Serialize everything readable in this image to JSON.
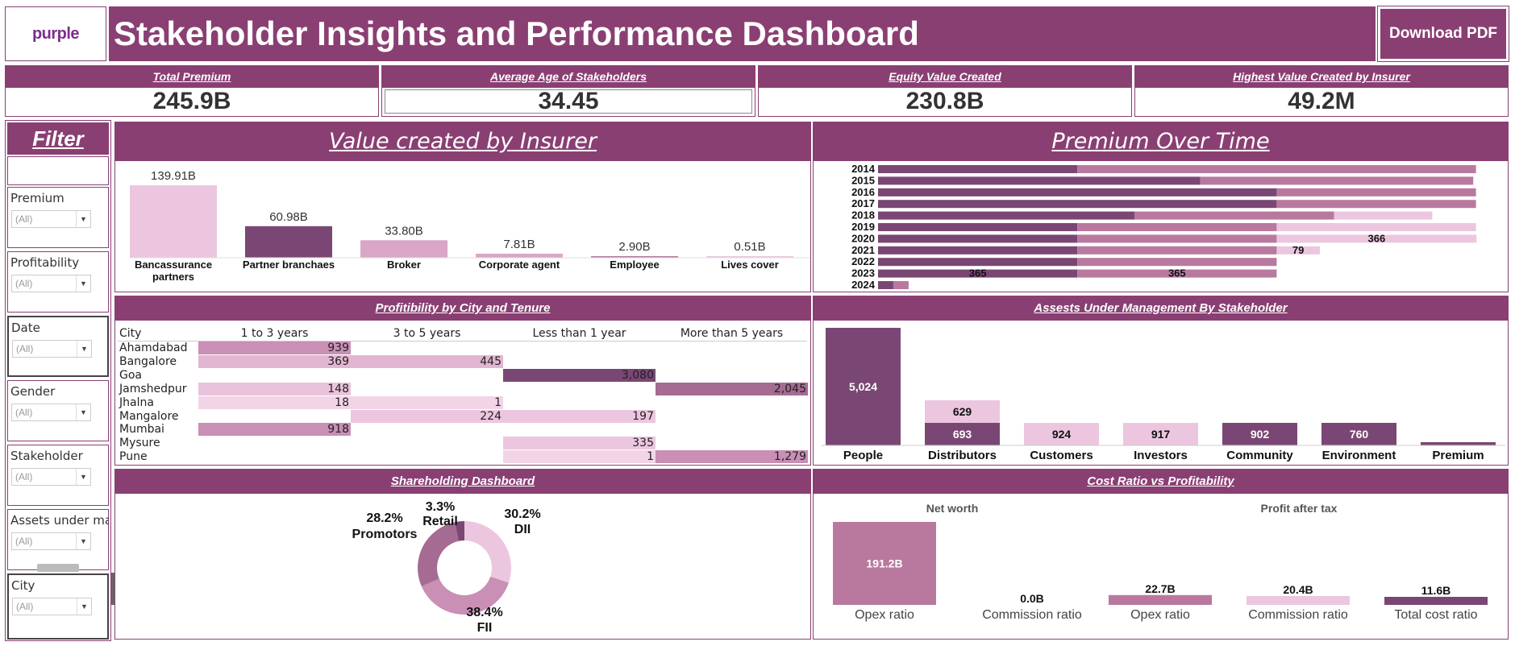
{
  "header": {
    "logo_text": "purple",
    "title": "Stakeholder Insights and Performance Dashboard",
    "download_label": "Download PDF"
  },
  "kpis": [
    {
      "title": "Total Premium",
      "value": "245.9B"
    },
    {
      "title": "Average Age of Stakeholders",
      "value": "34.45"
    },
    {
      "title": "Equity Value Created",
      "value": "230.8B"
    },
    {
      "title": "Highest Value Created by Insurer",
      "value": "49.2M"
    }
  ],
  "filters": {
    "title": "Filter",
    "items": [
      {
        "label": "Premium",
        "value": "(All)"
      },
      {
        "label": "Profitability",
        "value": "(All)"
      },
      {
        "label": "Date",
        "value": "(All)"
      },
      {
        "label": "Gender",
        "value": "(All)"
      },
      {
        "label": "Stakeholder",
        "value": "(All)"
      },
      {
        "label": "Assets under ma..",
        "value": "(All)"
      },
      {
        "label": "City",
        "value": "(All)"
      }
    ],
    "close_glyph": "✕",
    "expand_glyph": "▾"
  },
  "panels": {
    "value_insurer": "Value created by Insurer",
    "premium_time": "Premium  Over Time",
    "profitability": "Profitibility by City and Tenure",
    "aum": "Assests Under Management By Stakeholder",
    "shareholding": "Shareholding Dashboard",
    "cost_ratio": "Cost Ratio vs Profitability"
  },
  "colors": {
    "brand": "#8a3f73",
    "dark": "#7a4775",
    "mid": "#b9799f",
    "light": "#d9a6c6",
    "pale": "#ecc6df"
  },
  "chart_data": [
    {
      "type": "bar",
      "title": "Value created by Insurer",
      "categories": [
        "Bancassurance partners",
        "Partner branchaes",
        "Broker",
        "Corporate agent",
        "Employee",
        "Lives cover"
      ],
      "values": [
        139.91,
        60.98,
        33.8,
        7.81,
        2.9,
        0.51
      ],
      "labels": [
        "139.91B",
        "60.98B",
        "33.80B",
        "7.81B",
        "2.90B",
        "0.51B"
      ],
      "category_lines": [
        [
          "Bancassurance",
          "partners"
        ],
        [
          "Partner branchaes"
        ],
        [
          "Broker"
        ],
        [
          "Corporate agent"
        ],
        [
          "Employee"
        ],
        [
          "Lives cover"
        ]
      ],
      "colors": [
        "#ecc6df",
        "#7a4775",
        "#d9a6c6",
        "#d9a6c6",
        "#b9799f",
        "#ecc6df"
      ],
      "ylim": [
        0,
        140
      ]
    },
    {
      "type": "bar",
      "title": "Premium  Over Time",
      "orientation": "horizontal-stacked",
      "categories": [
        "2014",
        "2015",
        "2016",
        "2017",
        "2018",
        "2019",
        "2020",
        "2021",
        "2022",
        "2023",
        "2024"
      ],
      "series": [
        {
          "values": [
            365,
            590,
            730,
            730,
            470,
            365,
            365,
            365,
            365,
            365,
            28
          ],
          "color": "#7a4775"
        },
        {
          "values": [
            730,
            500,
            365,
            365,
            365,
            365,
            365,
            365,
            365,
            365,
            28
          ],
          "color": "#b9799f"
        },
        {
          "values": [
            0,
            0,
            0,
            0,
            180,
            365,
            366,
            79,
            0,
            0,
            0
          ],
          "color": "#ecc6df"
        }
      ],
      "data_labels": [
        {
          "category": "2020",
          "text": "366"
        },
        {
          "category": "2021",
          "text": "79"
        },
        {
          "category": "2023",
          "text": "365"
        },
        {
          "category": "2023",
          "text": "365"
        }
      ],
      "xlim": [
        0,
        1100
      ]
    },
    {
      "type": "heatmap",
      "title": "Profitibility by City and Tenure",
      "row_header": "City",
      "columns": [
        "1 to 3 years",
        "3 to 5 years",
        "Less than 1 year",
        "More than 5 years"
      ],
      "rows": [
        "Ahamdabad",
        "Bangalore",
        "Goa",
        "Jamshedpur",
        "Jhalna",
        "Mangalore",
        "Mumbai",
        "Mysure",
        "Pune"
      ],
      "values": [
        [
          "939",
          "",
          "",
          ""
        ],
        [
          "369",
          "445",
          "",
          ""
        ],
        [
          "",
          "",
          "3,080",
          ""
        ],
        [
          "148",
          "",
          "",
          "2,045"
        ],
        [
          "18",
          "1",
          "",
          ""
        ],
        [
          "",
          "224",
          "197",
          ""
        ],
        [
          "918",
          "",
          "",
          ""
        ],
        [
          "",
          "",
          "335",
          ""
        ],
        [
          "",
          "",
          "1",
          "1,279"
        ]
      ],
      "cell_colors": [
        [
          "#c98fb5",
          "",
          "",
          ""
        ],
        [
          "#e2b6d2",
          "#e2b6d2",
          "",
          ""
        ],
        [
          "",
          "",
          "#7a4775",
          ""
        ],
        [
          "#e9c3dc",
          "",
          "",
          "#a56b92"
        ],
        [
          "#f1d5e7",
          "#f1d5e7",
          "",
          ""
        ],
        [
          "",
          "#ecc6df",
          "#ecc6df",
          ""
        ],
        [
          "#c98fb5",
          "",
          "",
          ""
        ],
        [
          "",
          "",
          "#ecc6df",
          ""
        ],
        [
          "",
          "",
          "#f1d5e7",
          "#c98fb5"
        ]
      ]
    },
    {
      "type": "bar",
      "title": "Assests Under Management By Stakeholder",
      "categories": [
        "People",
        "Distributors",
        "Customers",
        "Investors",
        "Community",
        "Environment",
        "Premium"
      ],
      "segments": [
        [
          {
            "value": 5024,
            "label": "5,024",
            "color": "#7a4775"
          }
        ],
        [
          {
            "value": 693,
            "label": "693",
            "color": "#7a4775"
          },
          {
            "value": 629,
            "label": "629",
            "color": "#ecc6df"
          }
        ],
        [
          {
            "value": 924,
            "label": "924",
            "color": "#ecc6df"
          }
        ],
        [
          {
            "value": 917,
            "label": "917",
            "color": "#ecc6df"
          }
        ],
        [
          {
            "value": 902,
            "label": "902",
            "color": "#7a4775"
          }
        ],
        [
          {
            "value": 760,
            "label": "760",
            "color": "#7a4775"
          }
        ],
        [
          {
            "value": 95,
            "label": "",
            "color": "#7a4775"
          }
        ]
      ],
      "ylim": [
        0,
        5024
      ]
    },
    {
      "type": "pie",
      "title": "Shareholding Dashboard",
      "donut": true,
      "slices": [
        {
          "name": "DII",
          "value": 30.2,
          "label": "30.2%",
          "color": "#ecc6df"
        },
        {
          "name": "FII",
          "value": 38.4,
          "label": "38.4%",
          "color": "#c98fb5"
        },
        {
          "name": "Promotors",
          "value": 28.2,
          "label": "28.2%",
          "color": "#a56b92"
        },
        {
          "name": "Retail",
          "value": 3.3,
          "label": "3.3%",
          "color": "#7a4775"
        }
      ]
    },
    {
      "type": "bar",
      "title": "Cost Ratio vs Profitability",
      "groups": [
        {
          "name": "Net worth",
          "bars": [
            {
              "category": "Opex ratio",
              "value": 191.2,
              "label": "191.2B",
              "color": "#b9799f"
            },
            {
              "category": "Commission ratio",
              "value": 0.0,
              "label": "0.0B",
              "color": "#ecc6df"
            }
          ]
        },
        {
          "name": "Profit after tax",
          "bars": [
            {
              "category": "Opex ratio",
              "value": 22.7,
              "label": "22.7B",
              "color": "#b9799f"
            },
            {
              "category": "Commission ratio",
              "value": 20.4,
              "label": "20.4B",
              "color": "#ecc6df"
            },
            {
              "category": "Total cost ratio",
              "value": 11.6,
              "label": "11.6B",
              "color": "#7a4775"
            }
          ]
        }
      ],
      "ylim": [
        0,
        191.2
      ]
    }
  ]
}
